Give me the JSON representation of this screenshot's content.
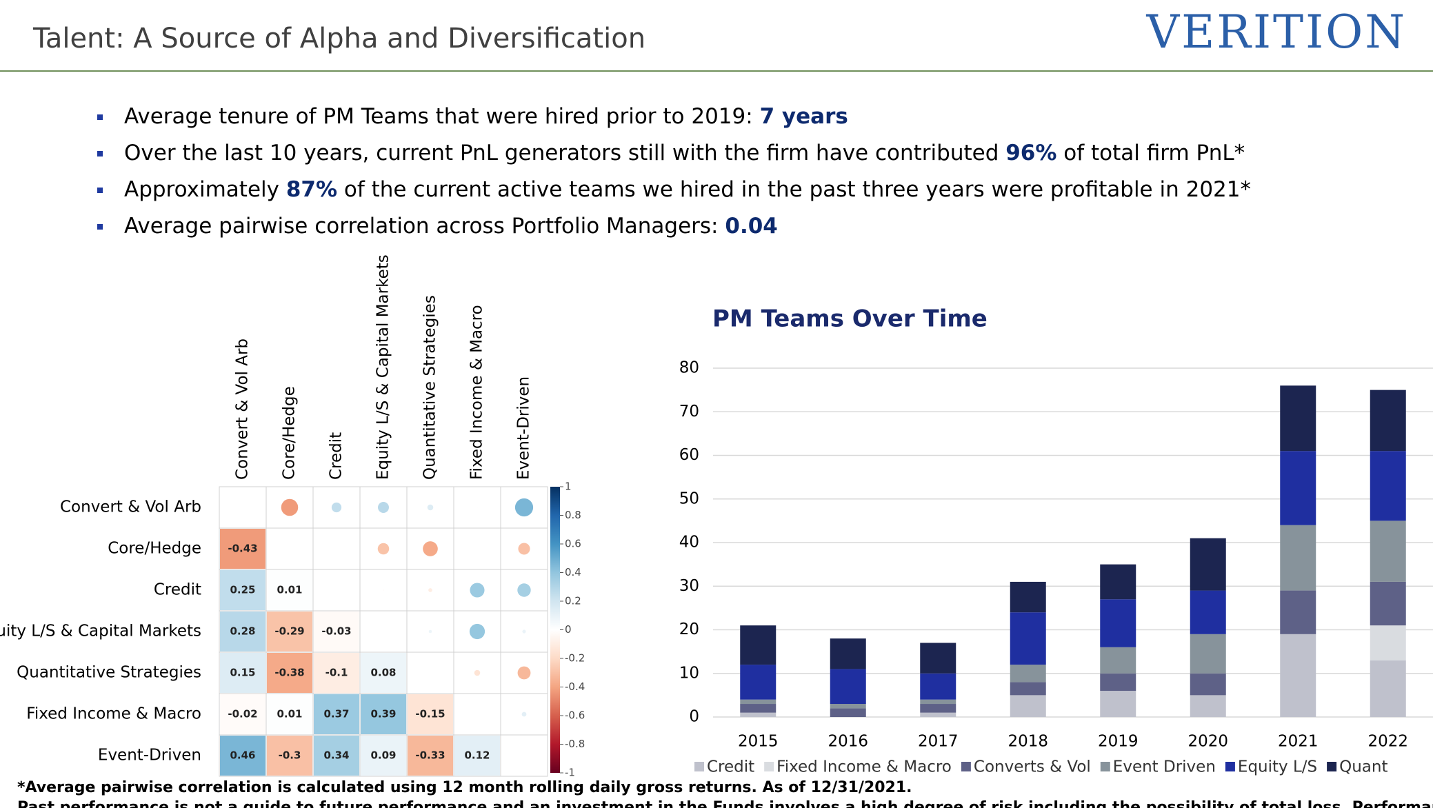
{
  "header": {
    "title": "Talent: A Source of Alpha and Diversification",
    "logo": "VERITION"
  },
  "bullets": [
    [
      "Average tenure of PM Teams that were hired prior to 2019: ",
      "7 years"
    ],
    [
      "Over the last 10 years, current PnL generators still with the firm have contributed ",
      "96%",
      " of total firm PnL*"
    ],
    [
      "Approximately ",
      "87%",
      " of the current active teams we hired in the past three years were profitable in 2021*"
    ],
    [
      "Average pairwise correlation across Portfolio Managers: ",
      "0.04"
    ]
  ],
  "chart_data": [
    {
      "type": "correlation",
      "labels": [
        "Convert & Vol Arb",
        "Core/Hedge",
        "Credit",
        "Equity L/S & Capital Markets",
        "Quantitative Strategies",
        "Fixed Income & Macro",
        "Event-Driven"
      ],
      "values": [
        [],
        [
          -0.43
        ],
        [
          0.25,
          0.01
        ],
        [
          0.28,
          -0.29,
          -0.03
        ],
        [
          0.15,
          -0.38,
          -0.1,
          0.08
        ],
        [
          -0.02,
          0.01,
          0.37,
          0.39,
          -0.15
        ],
        [
          0.46,
          -0.3,
          0.34,
          0.09,
          -0.33,
          0.12
        ]
      ],
      "clim": [
        -1,
        1
      ],
      "cticks": [
        1,
        0.8,
        0.6,
        0.4,
        0.2,
        0,
        -0.2,
        -0.4,
        -0.6,
        -0.8,
        -1
      ],
      "colormap": [
        "#67001f",
        "#b2182b",
        "#d6604d",
        "#f4a582",
        "#fddbc7",
        "#ffffff",
        "#d1e5f0",
        "#92c5de",
        "#4393c3",
        "#2166ac",
        "#053061"
      ]
    },
    {
      "type": "stacked_bar",
      "title": "PM Teams Over Time",
      "categories": [
        "2015",
        "2016",
        "2017",
        "2018",
        "2019",
        "2020",
        "2021",
        "2022"
      ],
      "series": [
        {
          "name": "Credit",
          "color": "#bfc1cc",
          "values": [
            1,
            0,
            1,
            5,
            6,
            5,
            19,
            13
          ]
        },
        {
          "name": "Fixed Income & Macro",
          "color": "#d9dce0",
          "values": [
            0,
            0,
            0,
            0,
            0,
            0,
            0,
            8
          ]
        },
        {
          "name": "Converts & Vol",
          "color": "#5e6187",
          "values": [
            2,
            2,
            2,
            3,
            4,
            5,
            10,
            10
          ]
        },
        {
          "name": "Event Driven",
          "color": "#87939b",
          "values": [
            1,
            1,
            1,
            4,
            6,
            9,
            15,
            14
          ]
        },
        {
          "name": "Equity L/S",
          "color": "#1f2fa0",
          "values": [
            8,
            8,
            6,
            12,
            11,
            10,
            17,
            16
          ]
        },
        {
          "name": "Quant",
          "color": "#1c2550",
          "values": [
            9,
            7,
            7,
            7,
            8,
            12,
            15,
            14
          ]
        }
      ],
      "ylim": [
        0,
        80
      ],
      "yticks": [
        0,
        10,
        20,
        30,
        40,
        50,
        60,
        70,
        80
      ],
      "grid": true,
      "legend": "bottom"
    }
  ],
  "footnotes": [
    "*Average pairwise correlation is calculated using 12 month rolling daily gross returns. As of 12/31/2021.",
    "Past performance is not a guide to future performance and an investment in the Funds involves a high degree of risk including the possibility of total loss. Performance may vary"
  ]
}
